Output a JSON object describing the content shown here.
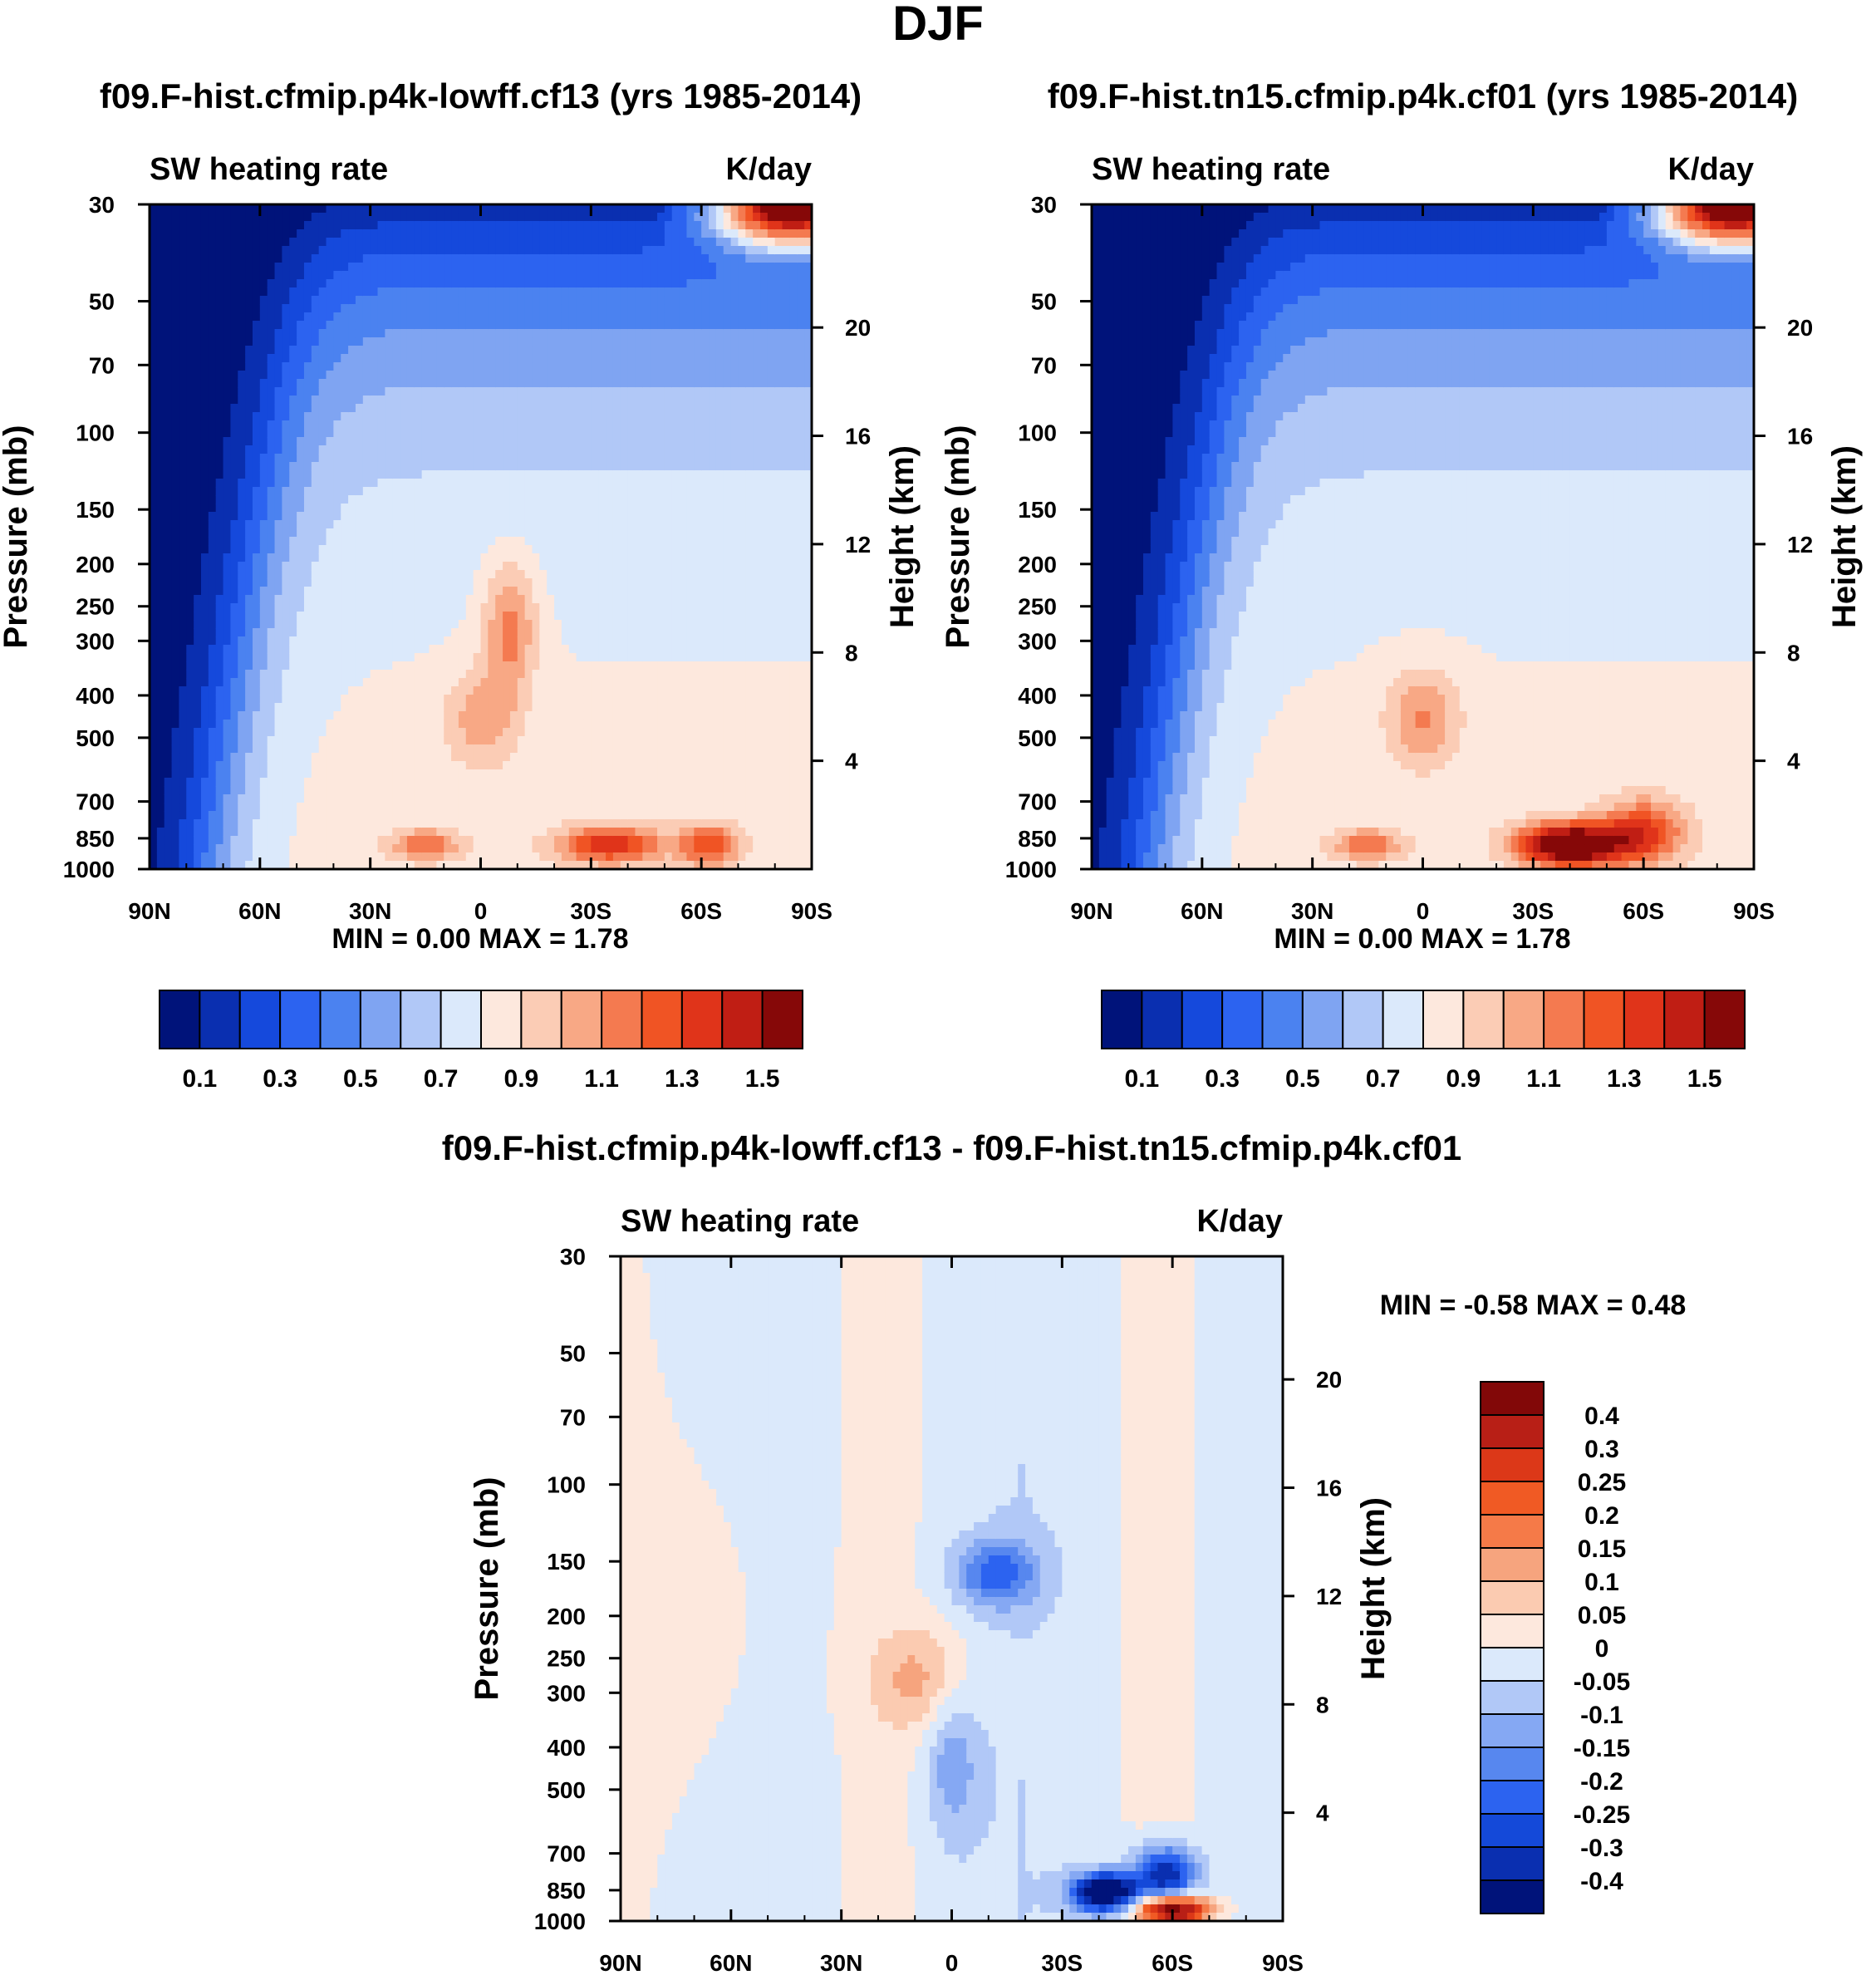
{
  "figure": {
    "title": "DJF"
  },
  "chart_data": [
    {
      "type": "heatmap",
      "title": "f09.F-hist.cfmip.p4k-lowff.cf13 (yrs 1985-2014)",
      "left_label": "SW heating rate",
      "right_label": "K/day",
      "xlabel": "",
      "ylabel": "Pressure (mb)",
      "y2label": "Height (km)",
      "x_ticks": [
        "90N",
        "60N",
        "30N",
        "0",
        "30S",
        "60S",
        "90S"
      ],
      "y_ticks": [
        30,
        50,
        70,
        100,
        150,
        200,
        250,
        300,
        400,
        500,
        700,
        850,
        1000
      ],
      "y2_ticks": [
        20,
        16,
        12,
        8,
        4
      ],
      "min_label": "MIN =",
      "min_value": "0.00",
      "max_label": "MAX =",
      "max_value": "1.78",
      "colorbar_labels": [
        "0.1",
        "0.3",
        "0.5",
        "0.7",
        "0.9",
        "1.1",
        "1.3",
        "1.5"
      ],
      "features": [
        {
          "lat": -35,
          "p": 880,
          "value": 1.4
        },
        {
          "lat": -62,
          "p": 880,
          "value": 1.35
        },
        {
          "lat": 15,
          "p": 880,
          "value": 1.15
        },
        {
          "lat": -8,
          "p": 280,
          "value": 1.25
        },
        {
          "lat": 0,
          "p": 450,
          "value": 1.0
        },
        {
          "lat": -85,
          "p": 30,
          "value": 1.78
        }
      ]
    },
    {
      "type": "heatmap",
      "title": "f09.F-hist.tn15.cfmip.p4k.cf01 (yrs 1985-2014)",
      "left_label": "SW heating rate",
      "right_label": "K/day",
      "xlabel": "",
      "ylabel": "Pressure (mb)",
      "y2label": "Height (km)",
      "x_ticks": [
        "90N",
        "60N",
        "30N",
        "0",
        "30S",
        "60S",
        "90S"
      ],
      "y_ticks": [
        30,
        50,
        70,
        100,
        150,
        200,
        250,
        300,
        400,
        500,
        700,
        850,
        1000
      ],
      "y2_ticks": [
        20,
        16,
        12,
        8,
        4
      ],
      "min_label": "MIN =",
      "min_value": "0.00",
      "max_label": "MAX =",
      "max_value": "1.78",
      "colorbar_labels": [
        "0.1",
        "0.3",
        "0.5",
        "0.7",
        "0.9",
        "1.1",
        "1.3",
        "1.5"
      ],
      "features": [
        {
          "lat": -40,
          "p": 880,
          "value": 1.75
        },
        {
          "lat": -60,
          "p": 820,
          "value": 1.3
        },
        {
          "lat": 15,
          "p": 880,
          "value": 1.15
        },
        {
          "lat": 0,
          "p": 450,
          "value": 1.1
        },
        {
          "lat": -85,
          "p": 30,
          "value": 1.78
        }
      ]
    },
    {
      "type": "heatmap",
      "title": "f09.F-hist.cfmip.p4k-lowff.cf13 - f09.F-hist.tn15.cfmip.p4k.cf01",
      "left_label": "SW heating rate",
      "right_label": "K/day",
      "xlabel": "",
      "ylabel": "Pressure (mb)",
      "y2label": "Height (km)",
      "x_ticks": [
        "90N",
        "60N",
        "30N",
        "0",
        "30S",
        "60S",
        "90S"
      ],
      "y_ticks": [
        30,
        50,
        70,
        100,
        150,
        200,
        250,
        300,
        400,
        500,
        700,
        850,
        1000
      ],
      "y2_ticks": [
        20,
        16,
        12,
        8,
        4
      ],
      "min_label": "MIN =",
      "min_value": "-0.58",
      "max_label": "MAX =",
      "max_value": "0.48",
      "colorbar_labels": [
        "0.4",
        "0.3",
        "0.25",
        "0.2",
        "0.15",
        "0.1",
        "0.05",
        "0",
        "-0.05",
        "-0.1",
        "-0.15",
        "-0.2",
        "-0.25",
        "-0.3",
        "-0.4"
      ],
      "features": [
        {
          "lat": -42,
          "p": 860,
          "value": -0.55
        },
        {
          "lat": -58,
          "p": 780,
          "value": -0.35
        },
        {
          "lat": -60,
          "p": 940,
          "value": 0.45
        },
        {
          "lat": 8,
          "p": 280,
          "value": 0.12
        },
        {
          "lat": -12,
          "p": 160,
          "value": -0.2
        },
        {
          "lat": 0,
          "p": 430,
          "value": -0.12
        }
      ]
    }
  ],
  "colors": {
    "sequential": [
      "#00137a",
      "#0a2fb0",
      "#1549dc",
      "#2c63f0",
      "#4b82f0",
      "#7fa4f2",
      "#b1c8f7",
      "#dbe9fb",
      "#fde8dd",
      "#fbccb5",
      "#f8a885",
      "#f47a50",
      "#f05424",
      "#e0341a",
      "#c01e14",
      "#860808"
    ],
    "diverging": [
      "#820808",
      "#b81f16",
      "#dc3818",
      "#f05a24",
      "#f57a48",
      "#f6a47e",
      "#fbcbb1",
      "#fde8dd",
      "#dbe9fb",
      "#b1c8f7",
      "#85a8f3",
      "#5787ef",
      "#2c63f0",
      "#1449d9",
      "#0a2fb0",
      "#00137a"
    ]
  }
}
